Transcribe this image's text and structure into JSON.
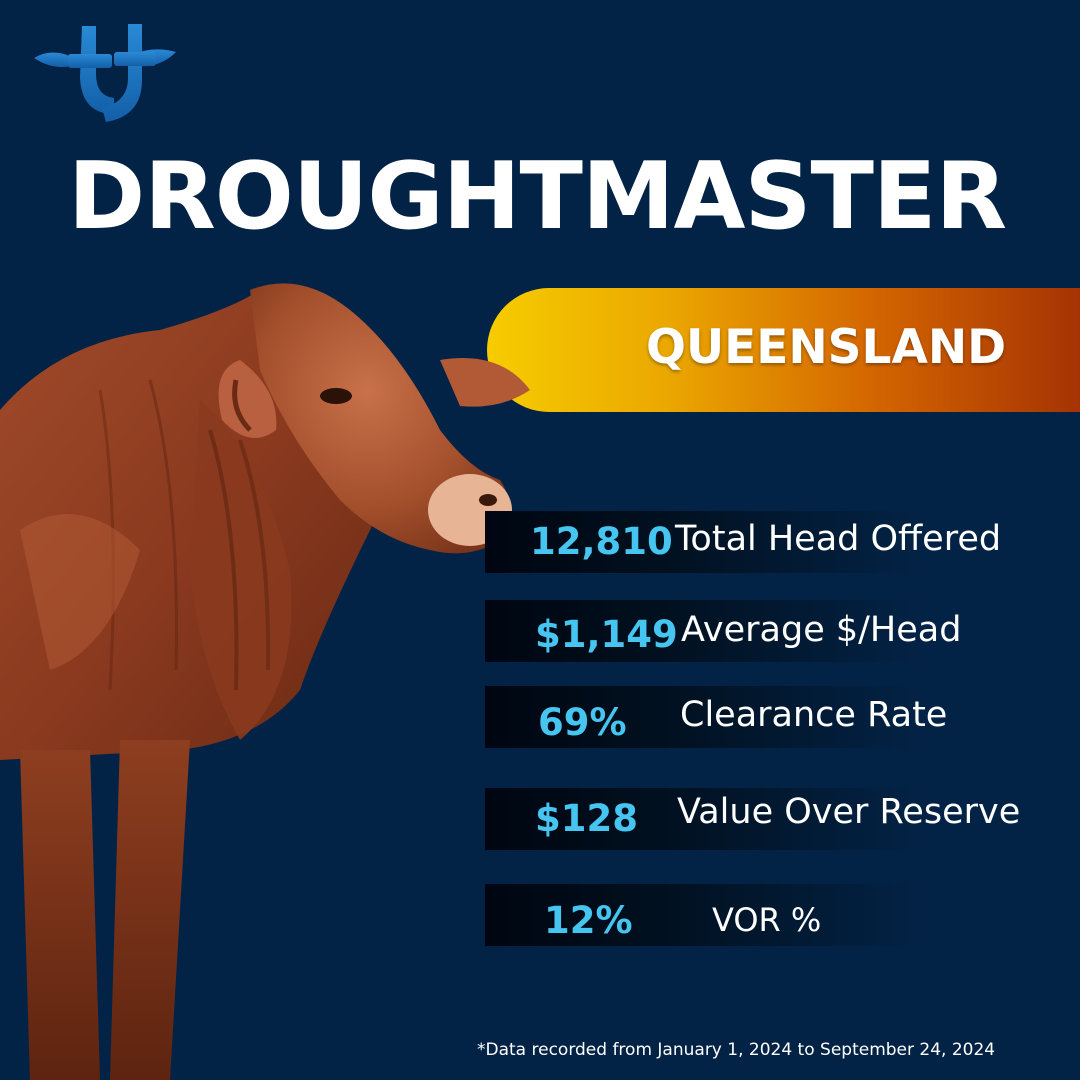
{
  "brand": {
    "logo_icon": "tt-cattle-logo-icon",
    "colors": {
      "background": "#032346",
      "accent": "#45c5ef",
      "logo_blue": "#1e7bc4"
    }
  },
  "title": "DROUGHTMASTER",
  "region": "QUEENSLAND",
  "image": {
    "subject": "droughtmaster-bull-image"
  },
  "stats": [
    {
      "value": "12,810",
      "label": "Total Head Offered"
    },
    {
      "value": "$1,149",
      "label": "Average $/Head"
    },
    {
      "value": "69%",
      "label": "Clearance Rate"
    },
    {
      "value": "$128",
      "label": "Value Over Reserve"
    },
    {
      "value": "12%",
      "label": "VOR %"
    }
  ],
  "footnote": "*Data recorded from January 1, 2024 to September 24, 2024"
}
